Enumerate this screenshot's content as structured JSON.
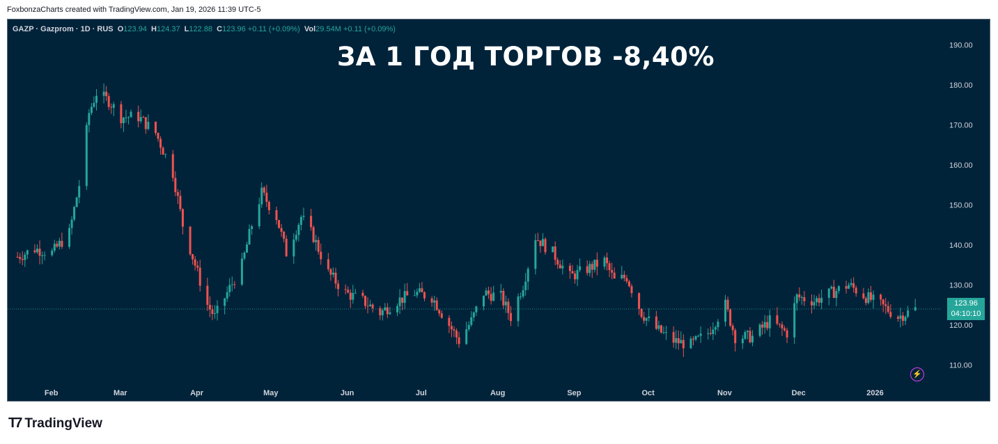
{
  "attribution": "FoxbonzaCharts created with TradingView.com, Jan 19, 2026 11:39 UTC-5",
  "legend": {
    "symbol": "GAZP · Gazprom · 1D · RUS",
    "o_label": "O",
    "o_value": "123.94",
    "h_label": "H",
    "h_value": "124.37",
    "l_label": "L",
    "l_value": "122.88",
    "c_label": "C",
    "c_value": "123.96",
    "change": "+0.11 (+0.09%)",
    "vol_label": "Vol",
    "vol_value": "29.54M",
    "vol_change": "+0.11 (+0.09%)"
  },
  "headline": "ЗА 1 ГОД ТОРГОВ -8,40%",
  "price_badge": {
    "price": "123.96",
    "countdown": "04:10:10"
  },
  "logo_text": "TradingView",
  "colors": {
    "up": "#26a69a",
    "down": "#ef5350",
    "background": "#01233a",
    "axis_text": "#d1d4dc"
  },
  "icons": {
    "alert": "lightning-bolt-icon",
    "logo": "tradingview-logo-icon"
  },
  "chart_data": {
    "type": "candlestick",
    "title": "",
    "y_axis": {
      "ticks": [
        110,
        120,
        130,
        140,
        150,
        160,
        170,
        180,
        190
      ],
      "tick_labels": [
        "110.00",
        "120.00",
        "130.00",
        "140.00",
        "150.00",
        "160.00",
        "170.00",
        "180.00",
        "190.00"
      ],
      "range": [
        101,
        196
      ]
    },
    "x_axis": {
      "labels": [
        "Feb",
        "Mar",
        "Apr",
        "May",
        "Jun",
        "Jul",
        "Aug",
        "Sep",
        "Oct",
        "Nov",
        "Dec",
        "2026"
      ]
    },
    "last_price": 123.96,
    "grid": false,
    "series_close_path": [
      [
        "2025-01-20",
        137
      ],
      [
        "2025-01-27",
        139
      ],
      [
        "2025-02-03",
        138
      ],
      [
        "2025-02-10",
        143
      ],
      [
        "2025-02-14",
        155
      ],
      [
        "2025-02-18",
        173
      ],
      [
        "2025-02-21",
        178
      ],
      [
        "2025-02-26",
        176
      ],
      [
        "2025-03-03",
        172
      ],
      [
        "2025-03-10",
        172
      ],
      [
        "2025-03-17",
        168
      ],
      [
        "2025-03-24",
        158
      ],
      [
        "2025-03-28",
        145
      ],
      [
        "2025-04-02",
        135
      ],
      [
        "2025-04-07",
        125
      ],
      [
        "2025-04-10",
        122
      ],
      [
        "2025-04-15",
        128
      ],
      [
        "2025-04-21",
        135
      ],
      [
        "2025-04-25",
        145
      ],
      [
        "2025-04-29",
        153
      ],
      [
        "2025-05-05",
        147
      ],
      [
        "2025-05-09",
        138
      ],
      [
        "2025-05-15",
        147
      ],
      [
        "2025-05-20",
        142
      ],
      [
        "2025-05-26",
        133
      ],
      [
        "2025-06-02",
        128
      ],
      [
        "2025-06-09",
        126
      ],
      [
        "2025-06-16",
        123
      ],
      [
        "2025-06-23",
        126
      ],
      [
        "2025-06-30",
        128
      ],
      [
        "2025-07-07",
        127
      ],
      [
        "2025-07-14",
        120
      ],
      [
        "2025-07-18",
        116
      ],
      [
        "2025-07-23",
        121
      ],
      [
        "2025-07-28",
        128
      ],
      [
        "2025-08-04",
        127
      ],
      [
        "2025-08-08",
        122
      ],
      [
        "2025-08-13",
        130
      ],
      [
        "2025-08-18",
        142
      ],
      [
        "2025-08-25",
        138
      ],
      [
        "2025-09-01",
        132
      ],
      [
        "2025-09-08",
        134
      ],
      [
        "2025-09-15",
        136
      ],
      [
        "2025-09-19",
        131
      ],
      [
        "2025-09-24",
        132
      ],
      [
        "2025-09-30",
        123
      ],
      [
        "2025-10-06",
        119
      ],
      [
        "2025-10-13",
        116
      ],
      [
        "2025-10-20",
        115
      ],
      [
        "2025-10-27",
        118
      ],
      [
        "2025-11-03",
        125
      ],
      [
        "2025-11-07",
        117
      ],
      [
        "2025-11-14",
        117
      ],
      [
        "2025-11-21",
        121
      ],
      [
        "2025-11-28",
        118
      ],
      [
        "2025-12-02",
        127
      ],
      [
        "2025-12-09",
        126
      ],
      [
        "2025-12-16",
        128
      ],
      [
        "2025-12-23",
        130
      ],
      [
        "2025-12-30",
        127
      ],
      [
        "2026-01-05",
        125
      ],
      [
        "2026-01-12",
        122
      ],
      [
        "2026-01-19",
        123.96
      ]
    ]
  }
}
